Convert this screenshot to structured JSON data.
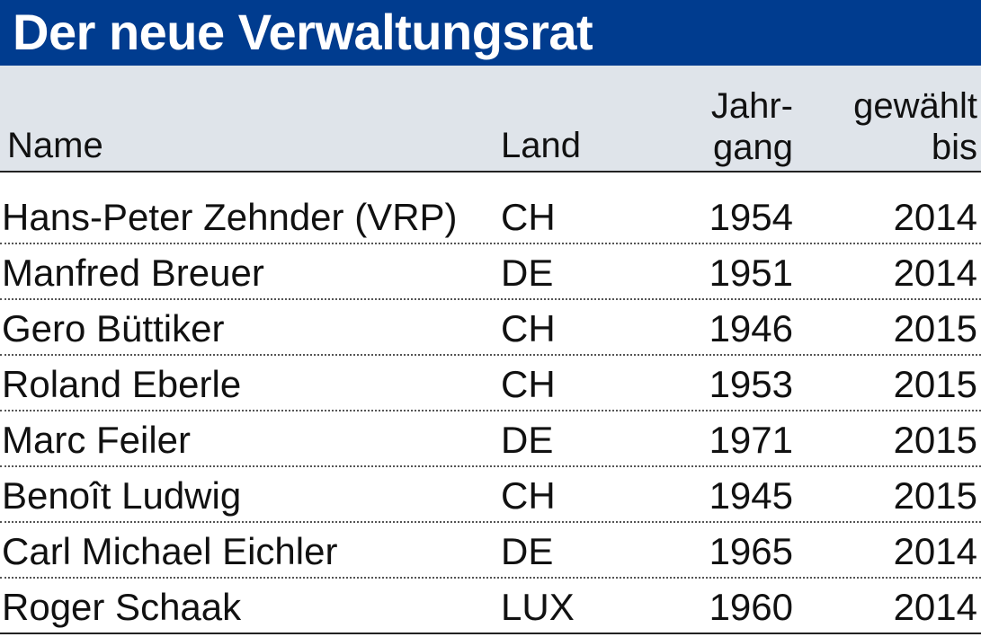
{
  "title": "Der neue Verwaltungsrat",
  "columns": {
    "name": "Name",
    "land": "Land",
    "jahrgang_line1": "Jahr-",
    "jahrgang_line2": "gang",
    "gewaehlt_line1": "gewählt",
    "gewaehlt_line2": "bis"
  },
  "rows": [
    {
      "name": "Hans-Peter Zehnder (VRP)",
      "land": "CH",
      "jahrgang": "1954",
      "bis": "2014"
    },
    {
      "name": "Manfred Breuer",
      "land": "DE",
      "jahrgang": "1951",
      "bis": "2014"
    },
    {
      "name": "Gero Büttiker",
      "land": "CH",
      "jahrgang": "1946",
      "bis": "2015"
    },
    {
      "name": "Roland Eberle",
      "land": "CH",
      "jahrgang": "1953",
      "bis": "2015"
    },
    {
      "name": "Marc Feiler",
      "land": "DE",
      "jahrgang": "1971",
      "bis": "2015"
    },
    {
      "name": "Benoît Ludwig",
      "land": "CH",
      "jahrgang": "1945",
      "bis": "2015"
    },
    {
      "name": "Carl Michael Eichler",
      "land": "DE",
      "jahrgang": "1965",
      "bis": "2014"
    },
    {
      "name": "Roger Schaak",
      "land": "LUX",
      "jahrgang": "1960",
      "bis": "2014"
    }
  ],
  "colors": {
    "title_background": "#003c8f",
    "header_background": "#dfe4ea"
  }
}
